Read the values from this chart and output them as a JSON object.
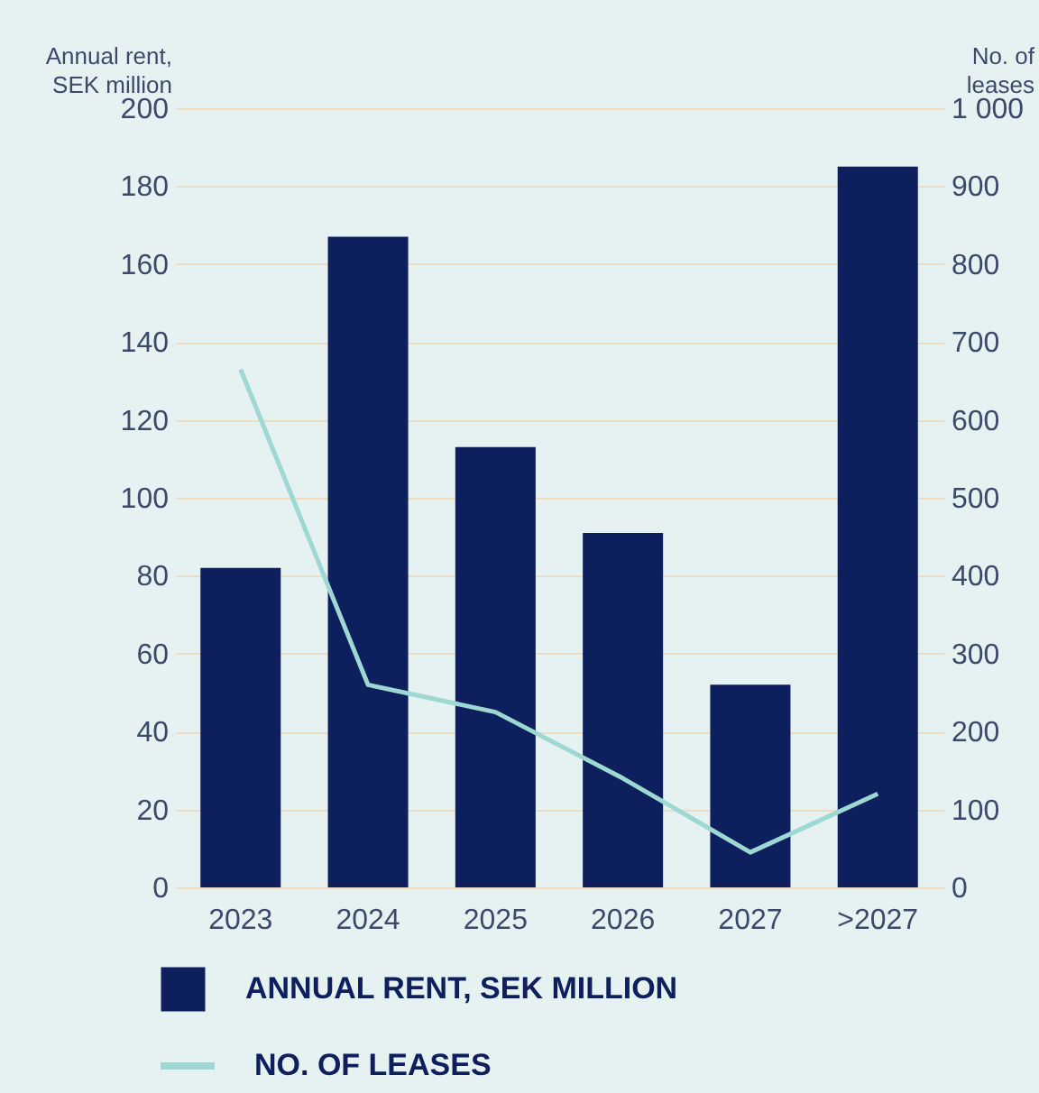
{
  "chart_data": {
    "type": "bar",
    "ylabel": "Annual rent,\nSEK million",
    "y2label": "No. of\nleases",
    "categories": [
      "2023",
      "2024",
      "2025",
      "2026",
      "2027",
      ">2027"
    ],
    "series": [
      {
        "name": "ANNUAL RENT, SEK MILLION",
        "color": "#0d1f5c",
        "values": [
          82,
          167,
          113,
          91,
          52,
          185
        ]
      },
      {
        "name": "NO. OF LEASES",
        "type": "line",
        "axis": "y2",
        "color": "#9dd8d3",
        "values": [
          665,
          260,
          225,
          140,
          45,
          120
        ]
      }
    ],
    "ylim": [
      0,
      200
    ],
    "yticks": [
      0,
      20,
      40,
      60,
      80,
      100,
      120,
      140,
      160,
      180,
      200
    ],
    "y2lim": [
      0,
      1000
    ],
    "y2ticks": [
      0,
      100,
      200,
      300,
      400,
      500,
      600,
      700,
      800,
      900,
      {
        "value": 1000,
        "label": "1 000"
      }
    ],
    "grid": "y",
    "legend": "bottom left"
  }
}
